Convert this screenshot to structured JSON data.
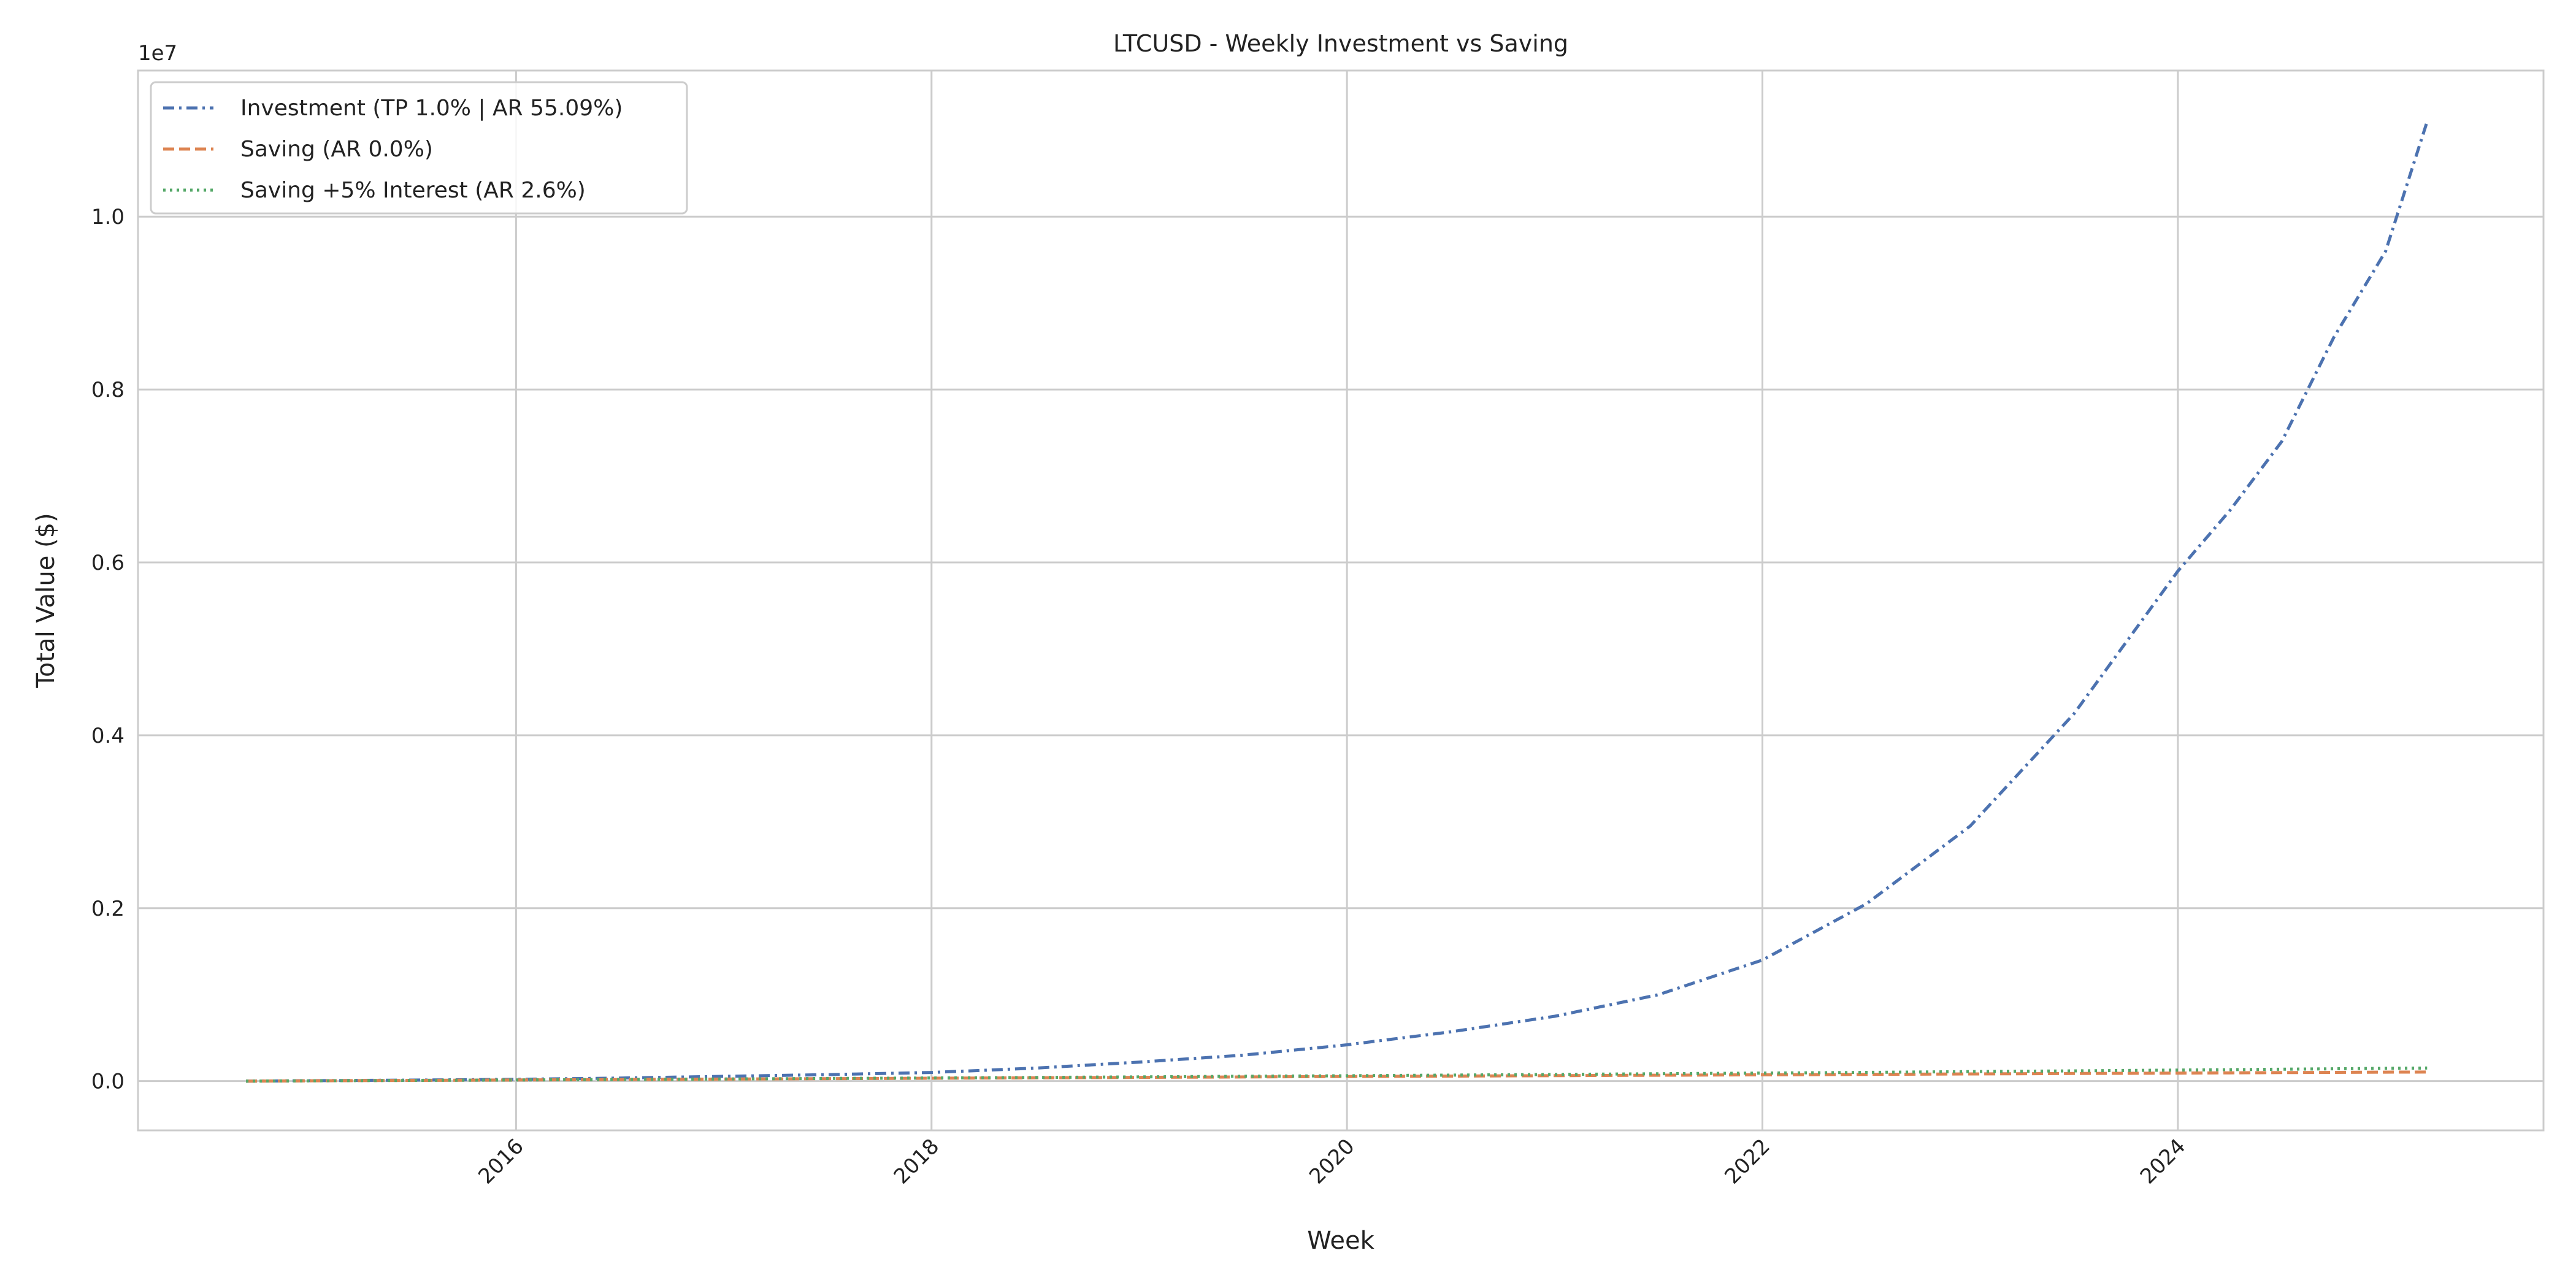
{
  "chart_data": {
    "type": "line",
    "title": "LTCUSD - Weekly Investment vs Saving",
    "x_label": "Week",
    "y_label": "Total Value ($)",
    "y_offset_label": "1e7",
    "x": [
      2014.7,
      2015,
      2015.5,
      2016,
      2016.5,
      2017,
      2017.5,
      2018,
      2018.5,
      2019,
      2019.5,
      2020,
      2020.5,
      2021,
      2021.5,
      2022,
      2022.5,
      2023,
      2023.5,
      2024,
      2024.25,
      2024.5,
      2024.75,
      2025,
      2025.2
    ],
    "series": [
      {
        "name": "Investment (TP 1.0% | AR 55.09%)",
        "color": "#4c72b0",
        "linestyle": "dashdot",
        "values": [
          0,
          5000,
          12000,
          20000,
          35000,
          55000,
          75000,
          100000,
          150000,
          220000,
          300000,
          420000,
          570000,
          750000,
          1000000,
          1400000,
          2050000,
          2950000,
          4250000,
          5900000,
          6600000,
          7400000,
          8600000,
          9600000,
          11100000
        ]
      },
      {
        "name": "Saving (AR 0.0%)",
        "color": "#dd8452",
        "linestyle": "dashed",
        "values": [
          0,
          3000,
          8000,
          13000,
          18000,
          23000,
          28000,
          33000,
          38000,
          43000,
          48000,
          53000,
          58000,
          63000,
          68000,
          73000,
          78000,
          83000,
          88000,
          93000,
          95500,
          98000,
          100500,
          103000,
          105000
        ]
      },
      {
        "name": "Saving +5% Interest (AR 2.6%)",
        "color": "#55a868",
        "linestyle": "dotted",
        "values": [
          0,
          3000,
          8100,
          13300,
          18800,
          24400,
          30200,
          36200,
          42400,
          48800,
          55500,
          62400,
          69500,
          76900,
          84600,
          92500,
          100800,
          109400,
          118300,
          127600,
          132400,
          137200,
          142200,
          147300,
          151000
        ]
      }
    ],
    "xlim": [
      2014.18,
      2025.76
    ],
    "xticks": [
      2016,
      2018,
      2020,
      2022,
      2024
    ],
    "ylim": [
      -570000,
      11690000
    ],
    "yticks": [
      {
        "value": 0,
        "label": "0.0"
      },
      {
        "value": 2000000,
        "label": "0.2"
      },
      {
        "value": 4000000,
        "label": "0.4"
      },
      {
        "value": 6000000,
        "label": "0.6"
      },
      {
        "value": 8000000,
        "label": "0.8"
      },
      {
        "value": 10000000,
        "label": "1.0"
      }
    ],
    "grid": true,
    "legend": "upper left"
  }
}
